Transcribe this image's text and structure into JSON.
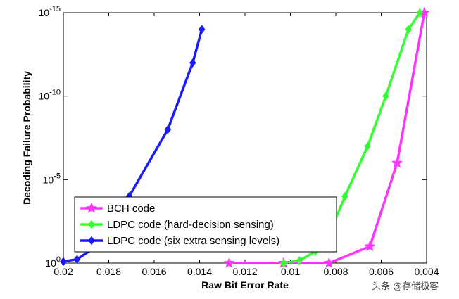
{
  "chart_data": {
    "type": "line",
    "title": "",
    "xlabel": "Raw Bit Error Rate",
    "ylabel": "Decoding Failure Probability",
    "x_reversed": true,
    "xlim": [
      0.02,
      0.004
    ],
    "ylim_exponent": [
      -15,
      0
    ],
    "y_scale": "log",
    "x_ticks": [
      0.02,
      0.018,
      0.016,
      0.014,
      0.012,
      0.01,
      0.008,
      0.006,
      0.004
    ],
    "x_tick_labels": [
      "0.02",
      "0.018",
      "0.016",
      "0.014",
      "0.012",
      "0.01",
      "0.008",
      "0.006",
      "0.004"
    ],
    "y_ticks": [
      0,
      -5,
      -10,
      -15
    ],
    "y_tick_base": "10",
    "y_tick_exponents": [
      "0",
      "-5",
      "-10",
      "-15"
    ],
    "grid": false,
    "legend_position": "bottom-left",
    "series": [
      {
        "name": "BCH code",
        "color": "#ff33ff",
        "marker": "star",
        "points": [
          {
            "x": 0.0127,
            "y": 1.0
          },
          {
            "x": 0.0103,
            "y": 1.0
          },
          {
            "x": 0.0083,
            "y": 1.0
          },
          {
            "x": 0.0065,
            "y": 0.1
          },
          {
            "x": 0.0053,
            "y": 1e-06
          },
          {
            "x": 0.0041,
            "y": 1e-15
          }
        ]
      },
      {
        "name": "LDPC code (hard-decision sensing)",
        "color": "#33ff33",
        "marker": "diamond",
        "points": [
          {
            "x": 0.0103,
            "y": 1.0
          },
          {
            "x": 0.0096,
            "y": 0.7
          },
          {
            "x": 0.0089,
            "y": 0.2
          },
          {
            "x": 0.0082,
            "y": 0.01
          },
          {
            "x": 0.0076,
            "y": 0.0001
          },
          {
            "x": 0.0066,
            "y": 1e-07
          },
          {
            "x": 0.0058,
            "y": 1e-10
          },
          {
            "x": 0.0048,
            "y": 1e-14
          },
          {
            "x": 0.0043,
            "y": 1e-15
          }
        ]
      },
      {
        "name": "LDPC code (six extra sensing levels)",
        "color": "#1a1aff",
        "marker": "diamond",
        "points": [
          {
            "x": 0.02,
            "y": 0.8
          },
          {
            "x": 0.0194,
            "y": 0.6
          },
          {
            "x": 0.0183,
            "y": 0.06
          },
          {
            "x": 0.0177,
            "y": 0.006
          },
          {
            "x": 0.0173,
            "y": 0.0004
          },
          {
            "x": 0.0171,
            "y": 0.0001
          },
          {
            "x": 0.0154,
            "y": 1e-08
          },
          {
            "x": 0.0143,
            "y": 1e-12
          },
          {
            "x": 0.0139,
            "y": 1e-14
          }
        ]
      }
    ]
  },
  "watermark": "头条 @存储极客"
}
